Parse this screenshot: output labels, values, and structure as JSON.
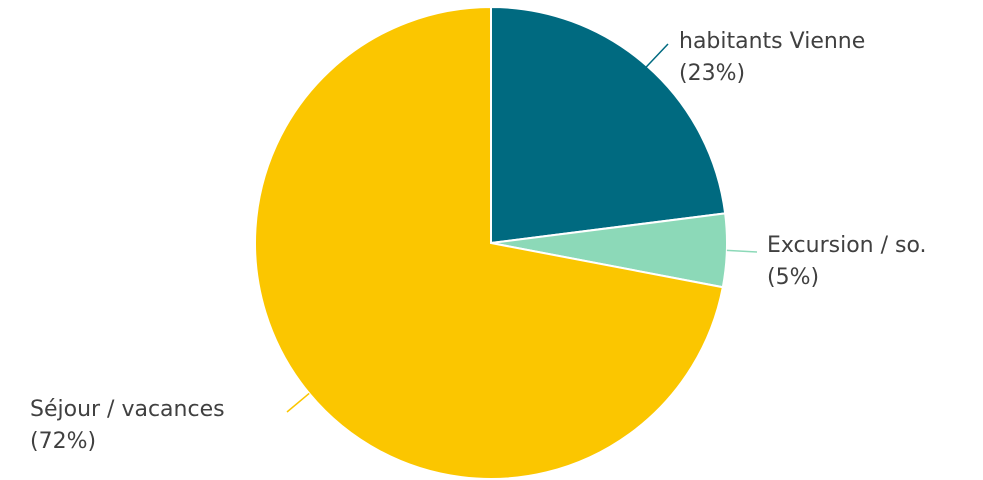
{
  "chart_data": {
    "type": "pie",
    "title": "",
    "slices": [
      {
        "label": "habitants Vienne",
        "value": 23,
        "value_label": "(23%)",
        "color": "#006A80"
      },
      {
        "label": "Excursion / so.",
        "value": 5,
        "value_label": "(5%)",
        "color": "#8CD9B8"
      },
      {
        "label": "Séjour / vacances",
        "value": 72,
        "value_label": "(72%)",
        "color": "#FBC600"
      }
    ],
    "start_angle": "top",
    "direction": "clockwise",
    "labels": "outside-with-leader-lines"
  }
}
